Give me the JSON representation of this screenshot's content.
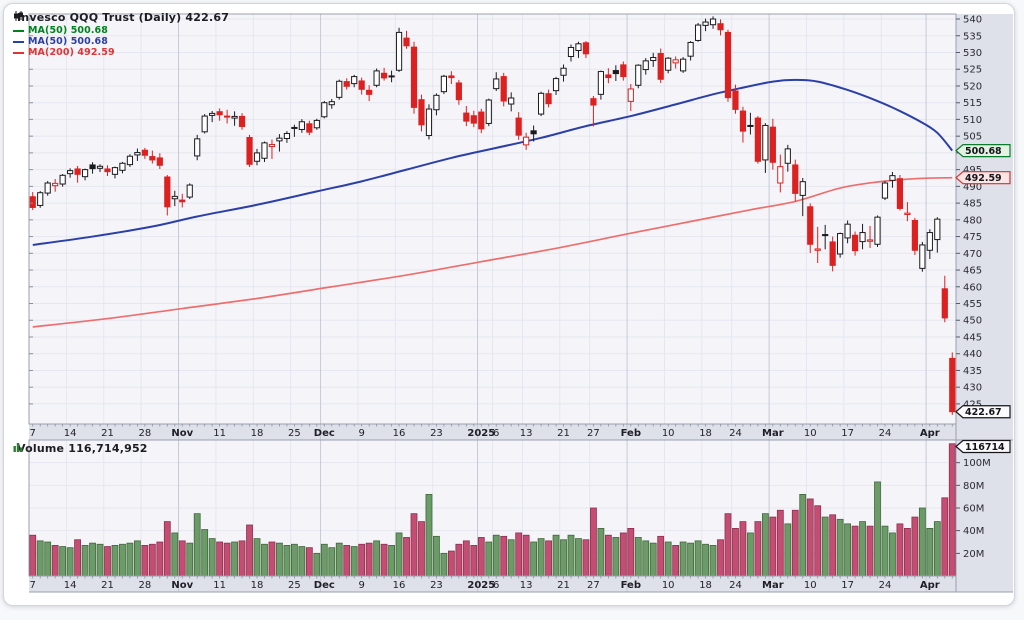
{
  "header": {
    "title": "Invesco QQQ Trust (Daily) 422.67",
    "legend": [
      {
        "label": "MA(50) 500.68",
        "color": "#00821e"
      },
      {
        "label": "MA(50) 500.68",
        "color": "#2b3fa8"
      },
      {
        "label": "MA(200) 492.59",
        "color": "#e03434"
      }
    ]
  },
  "volume_panel": {
    "label": "Volume 116,714,952"
  },
  "chart_data": {
    "type": "candlestick",
    "title": "Invesco QQQ Trust (Daily)",
    "last_price": 422.67,
    "price_axis": {
      "max": 541.5,
      "min": 419,
      "ticks": [
        540,
        535,
        530,
        525,
        520,
        515,
        510,
        505,
        500,
        495,
        490,
        485,
        480,
        475,
        470,
        465,
        460,
        455,
        450,
        445,
        440,
        435,
        430,
        425
      ],
      "tags": [
        {
          "label": "500.68",
          "price": 500.68,
          "style": "green"
        },
        {
          "label": "492.59",
          "price": 492.59,
          "style": "red"
        },
        {
          "label": "422.67",
          "price": 422.67,
          "style": "dark"
        }
      ]
    },
    "volume_axis": {
      "max_m": 120,
      "ticks_m": [
        100,
        80,
        60,
        40,
        20
      ],
      "tag": "116714"
    },
    "date_ticks": [
      {
        "i": 0,
        "label": "7"
      },
      {
        "i": 5,
        "label": "14"
      },
      {
        "i": 10,
        "label": "21"
      },
      {
        "i": 15,
        "label": "28"
      },
      {
        "i": 20,
        "label": "Nov",
        "month": true
      },
      {
        "i": 25,
        "label": "11"
      },
      {
        "i": 30,
        "label": "18"
      },
      {
        "i": 35,
        "label": "25"
      },
      {
        "i": 39,
        "label": "Dec",
        "month": true
      },
      {
        "i": 44,
        "label": "9"
      },
      {
        "i": 49,
        "label": "16"
      },
      {
        "i": 54,
        "label": "23"
      },
      {
        "i": 60,
        "label": "2025",
        "month": true
      },
      {
        "i": 62,
        "label": "6"
      },
      {
        "i": 66,
        "label": "13"
      },
      {
        "i": 71,
        "label": "21"
      },
      {
        "i": 75,
        "label": "27"
      },
      {
        "i": 80,
        "label": "Feb",
        "month": true
      },
      {
        "i": 85,
        "label": "10"
      },
      {
        "i": 90,
        "label": "18"
      },
      {
        "i": 94,
        "label": "24"
      },
      {
        "i": 99,
        "label": "Mar",
        "month": true
      },
      {
        "i": 104,
        "label": "10"
      },
      {
        "i": 109,
        "label": "17"
      },
      {
        "i": 114,
        "label": "24"
      },
      {
        "i": 120,
        "label": "Apr",
        "month": true
      }
    ],
    "month_boundaries": [
      20,
      39,
      60,
      80,
      99,
      120
    ],
    "candles": [
      [
        486.9,
        488.3,
        482.9,
        483.7,
        36
      ],
      [
        484.3,
        488.6,
        483.6,
        488.1,
        31
      ],
      [
        488.0,
        491.6,
        487.2,
        491.0,
        30
      ],
      [
        490.2,
        492.2,
        488.4,
        490.9,
        27
      ],
      [
        490.7,
        493.7,
        489.9,
        493.3,
        26
      ],
      [
        493.8,
        495.4,
        492.6,
        494.7,
        25
      ],
      [
        495.2,
        496.1,
        491.1,
        493.6,
        32
      ],
      [
        492.9,
        495.3,
        491.8,
        495.0,
        27
      ],
      [
        496.4,
        497.2,
        493.8,
        495.3,
        29
      ],
      [
        495.4,
        496.6,
        494.3,
        496.0,
        28
      ],
      [
        495.2,
        496.3,
        493.1,
        494.4,
        26
      ],
      [
        493.6,
        495.9,
        492.4,
        495.6,
        27
      ],
      [
        494.8,
        497.3,
        493.9,
        496.9,
        28
      ],
      [
        496.5,
        499.6,
        495.8,
        499.0,
        29
      ],
      [
        499.4,
        501.3,
        497.6,
        500.1,
        31
      ],
      [
        500.8,
        501.5,
        498.2,
        499.3,
        27
      ],
      [
        498.9,
        500.7,
        496.8,
        497.9,
        28
      ],
      [
        498.5,
        499.9,
        495.2,
        496.3,
        30
      ],
      [
        492.8,
        493.4,
        481.3,
        483.9,
        48
      ],
      [
        486.3,
        488.7,
        484.1,
        487.0,
        38
      ],
      [
        485.9,
        487.8,
        483.7,
        485.4,
        31
      ],
      [
        486.8,
        490.9,
        486.2,
        490.4,
        29
      ],
      [
        499.1,
        505.4,
        497.8,
        504.2,
        55
      ],
      [
        506.3,
        511.6,
        505.8,
        511.0,
        41
      ],
      [
        511.2,
        512.5,
        509.2,
        511.8,
        33
      ],
      [
        512.3,
        513.3,
        509.6,
        511.4,
        30
      ],
      [
        511.0,
        512.9,
        508.8,
        510.8,
        29
      ],
      [
        510.4,
        512.4,
        508.1,
        510.9,
        30
      ],
      [
        510.9,
        511.9,
        506.9,
        507.9,
        31
      ],
      [
        504.6,
        505.4,
        495.8,
        496.6,
        45
      ],
      [
        497.5,
        501.2,
        496.3,
        500.0,
        33
      ],
      [
        498.4,
        503.4,
        497.3,
        503.0,
        28
      ],
      [
        501.9,
        504.0,
        498.2,
        502.5,
        30
      ],
      [
        503.6,
        505.6,
        500.4,
        504.4,
        29
      ],
      [
        504.3,
        506.5,
        503.0,
        505.8,
        27
      ],
      [
        507.6,
        508.4,
        504.8,
        507.3,
        28
      ],
      [
        507.0,
        510.1,
        506.0,
        509.3,
        26
      ],
      [
        508.7,
        509.6,
        505.3,
        506.2,
        25
      ],
      [
        507.5,
        510.2,
        506.9,
        509.7,
        20
      ],
      [
        510.8,
        515.5,
        510.3,
        515.0,
        28
      ],
      [
        514.4,
        516.1,
        513.2,
        515.3,
        25
      ],
      [
        516.6,
        521.9,
        515.9,
        521.4,
        29
      ],
      [
        521.3,
        522.3,
        518.9,
        519.9,
        27
      ],
      [
        520.7,
        523.3,
        519.6,
        522.8,
        26
      ],
      [
        521.5,
        522.5,
        517.4,
        519.0,
        28
      ],
      [
        518.7,
        520.2,
        515.5,
        517.5,
        29
      ],
      [
        520.2,
        525.2,
        519.6,
        524.5,
        31
      ],
      [
        523.8,
        525.4,
        521.6,
        522.4,
        28
      ],
      [
        522.8,
        524.6,
        521.1,
        523.0,
        27
      ],
      [
        524.7,
        537.4,
        524.2,
        536.0,
        38
      ],
      [
        534.3,
        536.5,
        531.1,
        532.0,
        34
      ],
      [
        531.6,
        533.2,
        511.7,
        513.6,
        55
      ],
      [
        515.9,
        517.4,
        506.4,
        508.4,
        48
      ],
      [
        505.2,
        514.5,
        504.0,
        513.1,
        72
      ],
      [
        512.9,
        517.8,
        511.2,
        517.2,
        35
      ],
      [
        518.3,
        523.3,
        517.6,
        522.9,
        20
      ],
      [
        523.0,
        524.4,
        520.6,
        522.5,
        22
      ],
      [
        520.9,
        521.8,
        514.4,
        515.9,
        28
      ],
      [
        511.9,
        514.0,
        508.0,
        509.5,
        31
      ],
      [
        511.1,
        512.6,
        507.7,
        508.9,
        27
      ],
      [
        512.2,
        513.2,
        505.9,
        507.2,
        34
      ],
      [
        508.8,
        516.2,
        508.0,
        515.8,
        30
      ],
      [
        519.2,
        524.1,
        518.5,
        522.1,
        36
      ],
      [
        522.8,
        523.9,
        513.9,
        515.5,
        35
      ],
      [
        514.6,
        518.1,
        512.4,
        516.4,
        32
      ],
      [
        510.4,
        512.2,
        503.9,
        505.3,
        38
      ],
      [
        502.4,
        506.0,
        500.9,
        504.7,
        36
      ],
      [
        506.6,
        508.2,
        503.4,
        505.7,
        30
      ],
      [
        511.6,
        518.3,
        511.0,
        517.8,
        33
      ],
      [
        517.7,
        518.9,
        513.6,
        514.7,
        31
      ],
      [
        518.6,
        522.7,
        517.3,
        522.2,
        36
      ],
      [
        523.2,
        526.4,
        521.3,
        525.3,
        32
      ],
      [
        528.8,
        532.4,
        527.3,
        531.5,
        36
      ],
      [
        530.6,
        533.2,
        528.4,
        532.6,
        33
      ],
      [
        532.9,
        533.4,
        528.3,
        529.6,
        32
      ],
      [
        516.2,
        517.0,
        507.9,
        514.3,
        60
      ],
      [
        517.5,
        524.6,
        515.9,
        524.3,
        42
      ],
      [
        523.3,
        525.3,
        520.8,
        522.5,
        36
      ],
      [
        524.6,
        526.2,
        521.5,
        523.7,
        34
      ],
      [
        526.3,
        527.3,
        521.6,
        522.8,
        38
      ],
      [
        515.4,
        520.6,
        512.5,
        519.1,
        42
      ],
      [
        520.2,
        526.5,
        519.3,
        526.2,
        34
      ],
      [
        524.9,
        528.3,
        523.4,
        527.5,
        31
      ],
      [
        527.6,
        529.9,
        525.7,
        528.5,
        29
      ],
      [
        529.7,
        531.2,
        520.9,
        522.0,
        35
      ],
      [
        524.7,
        528.6,
        523.8,
        528.3,
        30
      ],
      [
        526.9,
        528.8,
        525.2,
        527.8,
        27
      ],
      [
        524.5,
        528.6,
        523.9,
        528.0,
        30
      ],
      [
        528.9,
        533.4,
        527.6,
        533.0,
        29
      ],
      [
        533.6,
        538.8,
        533.2,
        538.2,
        31
      ],
      [
        538.1,
        540.1,
        536.4,
        539.1,
        28
      ],
      [
        538.3,
        540.8,
        537.1,
        540.0,
        27
      ],
      [
        538.6,
        539.9,
        535.1,
        536.8,
        32
      ],
      [
        536.0,
        536.8,
        515.3,
        516.5,
        55
      ],
      [
        518.5,
        520.4,
        511.7,
        513.0,
        42
      ],
      [
        512.5,
        513.8,
        503.1,
        506.5,
        48
      ],
      [
        508.2,
        512.0,
        505.5,
        507.9,
        38
      ],
      [
        510.4,
        511.0,
        496.8,
        497.5,
        48
      ],
      [
        497.9,
        508.9,
        494.0,
        508.2,
        55
      ],
      [
        507.7,
        510.2,
        495.0,
        497.2,
        52
      ],
      [
        491.0,
        499.5,
        488.2,
        495.9,
        58
      ],
      [
        496.9,
        502.4,
        494.4,
        501.2,
        46
      ],
      [
        496.4,
        498.0,
        485.5,
        487.9,
        58
      ],
      [
        487.3,
        492.5,
        481.1,
        491.4,
        72
      ],
      [
        483.9,
        484.9,
        470.1,
        472.7,
        68
      ],
      [
        470.9,
        477.9,
        467.1,
        471.3,
        62
      ],
      [
        475.6,
        478.5,
        471.2,
        475.3,
        52
      ],
      [
        473.4,
        475.0,
        464.6,
        466.4,
        54
      ],
      [
        469.8,
        476.2,
        468.7,
        475.9,
        50
      ],
      [
        474.6,
        479.8,
        473.0,
        478.7,
        46
      ],
      [
        475.4,
        476.5,
        469.3,
        470.8,
        44
      ],
      [
        473.5,
        478.8,
        471.2,
        476.2,
        48
      ],
      [
        473.6,
        478.2,
        471.6,
        474.0,
        44
      ],
      [
        472.7,
        481.3,
        471.9,
        480.8,
        83
      ],
      [
        486.5,
        491.6,
        485.9,
        491.0,
        44
      ],
      [
        491.8,
        494.3,
        489.6,
        493.2,
        38
      ],
      [
        492.3,
        493.4,
        482.8,
        483.4,
        46
      ],
      [
        481.6,
        485.3,
        479.6,
        482.0,
        42
      ],
      [
        479.8,
        480.6,
        469.5,
        470.9,
        52
      ],
      [
        465.5,
        473.4,
        464.5,
        472.5,
        60
      ],
      [
        470.9,
        477.2,
        468.3,
        476.2,
        42
      ],
      [
        474.1,
        480.8,
        470.2,
        480.2,
        48
      ],
      [
        459.4,
        463.3,
        449.4,
        450.7,
        69
      ],
      [
        438.6,
        440.4,
        421.7,
        422.67,
        116.7
      ]
    ],
    "ma50": [
      [
        0,
        472.5
      ],
      [
        8,
        475
      ],
      [
        16,
        478
      ],
      [
        22,
        481
      ],
      [
        30,
        484.5
      ],
      [
        38,
        488.5
      ],
      [
        44,
        491.5
      ],
      [
        50,
        495
      ],
      [
        56,
        498.5
      ],
      [
        62,
        501.5
      ],
      [
        68,
        504.5
      ],
      [
        74,
        508
      ],
      [
        80,
        511
      ],
      [
        86,
        514.5
      ],
      [
        91,
        517.5
      ],
      [
        95,
        519.5
      ],
      [
        99,
        521.3
      ],
      [
        102,
        521.8
      ],
      [
        105,
        521.3
      ],
      [
        109,
        518.8
      ],
      [
        113,
        515.5
      ],
      [
        116,
        512.5
      ],
      [
        119,
        509
      ],
      [
        121,
        506
      ],
      [
        123,
        500.7
      ]
    ],
    "ma200": [
      [
        0,
        448
      ],
      [
        10,
        450.5
      ],
      [
        20,
        453.5
      ],
      [
        30,
        456.5
      ],
      [
        40,
        460
      ],
      [
        50,
        463.5
      ],
      [
        60,
        467.5
      ],
      [
        70,
        471.5
      ],
      [
        80,
        476
      ],
      [
        88,
        479.5
      ],
      [
        96,
        483
      ],
      [
        102,
        485.5
      ],
      [
        108,
        489.5
      ],
      [
        113,
        491.3
      ],
      [
        118,
        492.3
      ],
      [
        123,
        492.59
      ]
    ],
    "colors": {
      "up": "#1b1b1f",
      "down": "#dd2020",
      "ma50": "#2b3fa8",
      "ma200": "#ee6e6e",
      "vol_up": "#6b9b66",
      "vol_up_border": "#42663d",
      "vol_down": "#c44d72",
      "vol_down_border": "#8d2f52",
      "grid": "#e5e6ef",
      "month_grid": "#c7c9d5",
      "panel_bg": "#f5f5f9",
      "axis_bg": "#dfe1ea",
      "frame": "#9aa0ae",
      "tag_green_bg": "#e4f2e4",
      "tag_green_border": "#0c7c2c",
      "tag_red_bg": "#fbe4e4",
      "tag_red_border": "#d23232",
      "tag_dark_bg": "#fbfbfd",
      "tag_dark_border": "#17171b",
      "label": "#2a2a33"
    }
  }
}
